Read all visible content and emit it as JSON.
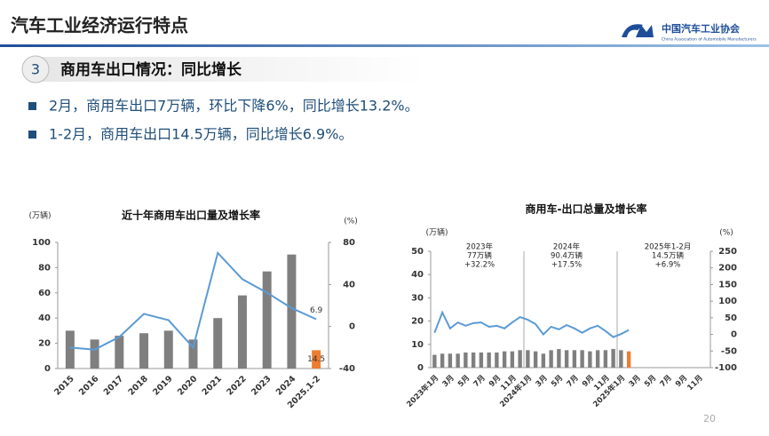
{
  "header": {
    "title": "汽车工业经济运行特点",
    "logo_name": "中国汽车工业协会",
    "logo_subtitle": "China Association of Automobile Manufacturers"
  },
  "section": {
    "number": "3",
    "title": "商用车出口情况：同比增长"
  },
  "bullets": [
    "2月，商用车出口7万辆，环比下降6%，同比增长13.2%。",
    "1-2月，商用车出口14.5万辆，同比增长6.9%。"
  ],
  "page_number": "20",
  "chart_data": [
    {
      "type": "combo",
      "title": "近十年商用车出口量及增长率",
      "y_unit": "(万辆)",
      "y2_unit": "(%)",
      "categories": [
        "2015",
        "2016",
        "2017",
        "2018",
        "2019",
        "2020",
        "2021",
        "2022",
        "2023",
        "2024",
        "2025.1-2"
      ],
      "ylim": [
        0,
        100
      ],
      "yticks": [
        0,
        20,
        40,
        60,
        80,
        100
      ],
      "y2lim": [
        -40,
        80
      ],
      "y2ticks": [
        -40,
        0,
        40,
        80
      ],
      "series": [
        {
          "type": "bar",
          "colors": [
            "#7f7f7f",
            "#7f7f7f",
            "#7f7f7f",
            "#7f7f7f",
            "#7f7f7f",
            "#7f7f7f",
            "#7f7f7f",
            "#7f7f7f",
            "#7f7f7f",
            "#7f7f7f",
            "#ed7d31"
          ],
          "values": [
            30,
            23,
            26,
            28,
            30,
            23,
            40,
            58,
            77,
            90.4,
            14.5
          ],
          "value_labels": [
            null,
            null,
            null,
            null,
            null,
            null,
            null,
            null,
            null,
            null,
            "14.5"
          ]
        },
        {
          "type": "line",
          "axis": "y2",
          "color": "#5b9bd5",
          "values": [
            -20,
            -22,
            -10,
            12,
            6,
            -20,
            70,
            45,
            32.2,
            17.5,
            6.9
          ],
          "value_labels": [
            null,
            null,
            null,
            null,
            null,
            null,
            null,
            null,
            null,
            null,
            "6.9"
          ]
        }
      ]
    },
    {
      "type": "combo",
      "title": "商用车-出口总量及增长率",
      "y_unit": "(万辆)",
      "y2_unit": "(%)",
      "categories": [
        "2023年1月",
        null,
        "3月",
        null,
        "5月",
        null,
        "7月",
        null,
        "9月",
        null,
        "11月",
        null,
        "2024年1月",
        null,
        "3月",
        null,
        "5月",
        null,
        "7月",
        null,
        "9月",
        null,
        "11月",
        null,
        "2025年1月",
        null,
        "3月",
        null,
        "5月",
        null,
        "7月",
        null,
        "9月",
        null,
        "11月",
        null
      ],
      "ylim": [
        0,
        50
      ],
      "yticks": [
        0,
        10,
        20,
        30,
        40,
        50
      ],
      "y2lim": [
        -100,
        250
      ],
      "y2ticks": [
        -100,
        -50,
        0,
        50,
        100,
        150,
        200,
        250
      ],
      "annotations": [
        [
          "2023年",
          "77万辆",
          "+32.2%"
        ],
        [
          "2024年",
          "90.4万辆",
          "+17.5%"
        ],
        [
          "2025年1-2月",
          "14.5万辆",
          "+6.9%"
        ]
      ],
      "series": [
        {
          "type": "bar",
          "colors": [
            "#7f7f7f",
            "#7f7f7f",
            "#7f7f7f",
            "#7f7f7f",
            "#7f7f7f",
            "#7f7f7f",
            "#7f7f7f",
            "#7f7f7f",
            "#7f7f7f",
            "#7f7f7f",
            "#7f7f7f",
            "#7f7f7f",
            "#7f7f7f",
            "#7f7f7f",
            "#7f7f7f",
            "#7f7f7f",
            "#7f7f7f",
            "#7f7f7f",
            "#7f7f7f",
            "#7f7f7f",
            "#7f7f7f",
            "#7f7f7f",
            "#7f7f7f",
            "#7f7f7f",
            "#7f7f7f",
            "#ed7d31",
            "#7f7f7f",
            "#7f7f7f",
            "#7f7f7f",
            "#7f7f7f",
            "#7f7f7f",
            "#7f7f7f",
            "#7f7f7f",
            "#7f7f7f",
            "#7f7f7f",
            "#7f7f7f"
          ],
          "values": [
            5.5,
            6,
            6,
            6,
            6.5,
            6.5,
            6.5,
            6.5,
            6.5,
            7,
            7,
            7.5,
            7.5,
            7,
            6,
            7.5,
            8,
            7.5,
            7.5,
            7.5,
            7,
            7.5,
            7.5,
            8,
            7.5,
            7,
            null,
            null,
            null,
            null,
            null,
            null,
            null,
            null,
            null,
            null
          ]
        },
        {
          "type": "line",
          "axis": "y2",
          "color": "#5b9bd5",
          "values": [
            5,
            66,
            18,
            36,
            26,
            34,
            36,
            23,
            26,
            18,
            36,
            52,
            44,
            31,
            0,
            23,
            15,
            28,
            18,
            5,
            18,
            26,
            10,
            -8,
            1,
            13.2,
            null,
            null,
            null,
            null,
            null,
            null,
            null,
            null,
            null,
            null
          ]
        }
      ]
    }
  ]
}
